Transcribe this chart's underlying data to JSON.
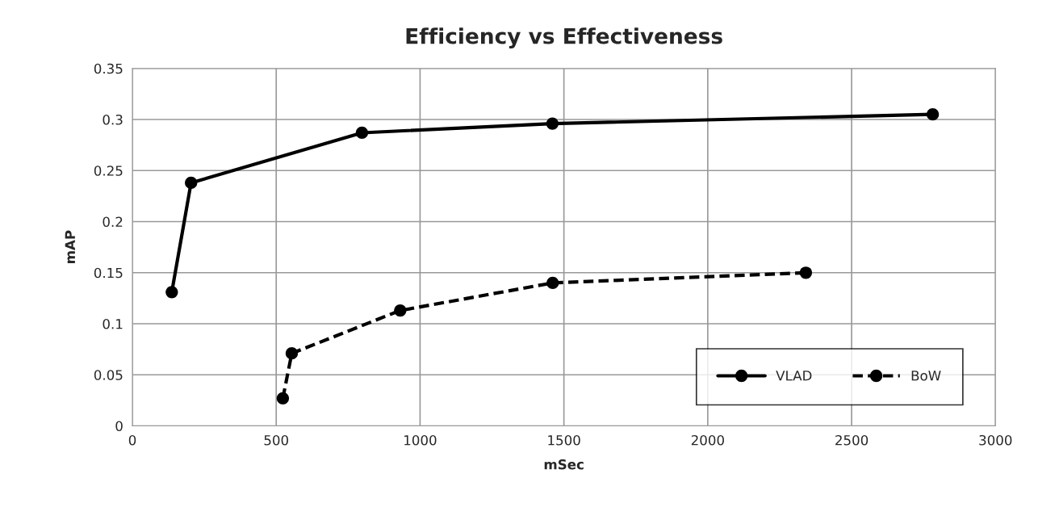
{
  "chart_data": {
    "type": "line",
    "title": "Efficiency vs Effectiveness",
    "xlabel": "mSec",
    "ylabel": "mAP",
    "xlim": [
      0,
      3000
    ],
    "xticks": [
      0,
      500,
      1000,
      1500,
      2000,
      2500,
      3000
    ],
    "ylim": [
      0,
      0.35
    ],
    "yticks": [
      0,
      0.05,
      0.1,
      0.15,
      0.2,
      0.25,
      0.3,
      0.35
    ],
    "grid": true,
    "legend": "bottom right",
    "marker": "circle",
    "series": [
      {
        "name": "VLAD",
        "color": "#000000",
        "line_style": "solid",
        "x": [
          137,
          204,
          798,
          1460,
          2782
        ],
        "values": [
          0.131,
          0.238,
          0.287,
          0.296,
          0.305
        ]
      },
      {
        "name": "BoW",
        "color": "#000000",
        "line_style": "dashed",
        "x": [
          523,
          554,
          931,
          1461,
          2341
        ],
        "values": [
          0.027,
          0.071,
          0.113,
          0.14,
          0.15
        ]
      }
    ]
  }
}
